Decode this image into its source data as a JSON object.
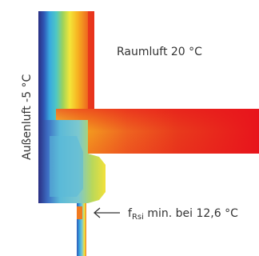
{
  "labels": {
    "inside_air": "Raumluft 20 °C",
    "outside_air": "Außenluft -5 °C",
    "annotation_main": "f",
    "annotation_sub": "Rsi",
    "annotation_rest": " min. bei 12,6 °C"
  },
  "colors": {
    "warm": "#e8141c",
    "background": "#ffffff"
  }
}
